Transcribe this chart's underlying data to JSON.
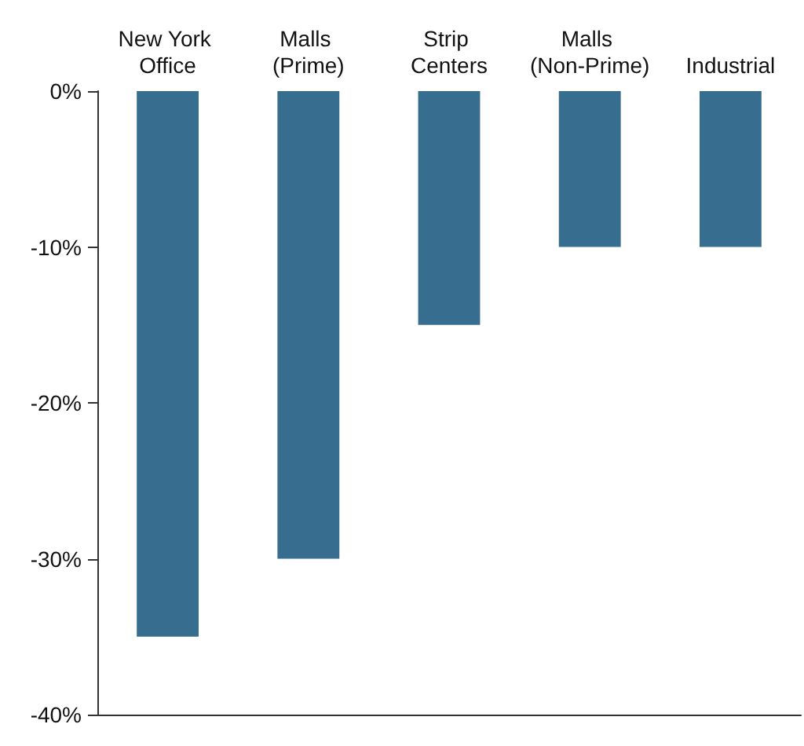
{
  "chart_data": {
    "type": "bar",
    "categories": [
      "New York Office",
      "Malls (Prime)",
      "Strip Centers",
      "Malls (Non-Prime)",
      "Industrial"
    ],
    "values": [
      -35,
      -30,
      -15,
      -10,
      -10
    ],
    "color": "#376e8f",
    "ylim": [
      -40,
      0
    ],
    "yticks": [
      {
        "value": 0,
        "label": "0%"
      },
      {
        "value": -10,
        "label": "-10%"
      },
      {
        "value": -20,
        "label": "-20%"
      },
      {
        "value": -30,
        "label": "-30%"
      },
      {
        "value": -40,
        "label": "-40%"
      }
    ],
    "grid": false
  }
}
